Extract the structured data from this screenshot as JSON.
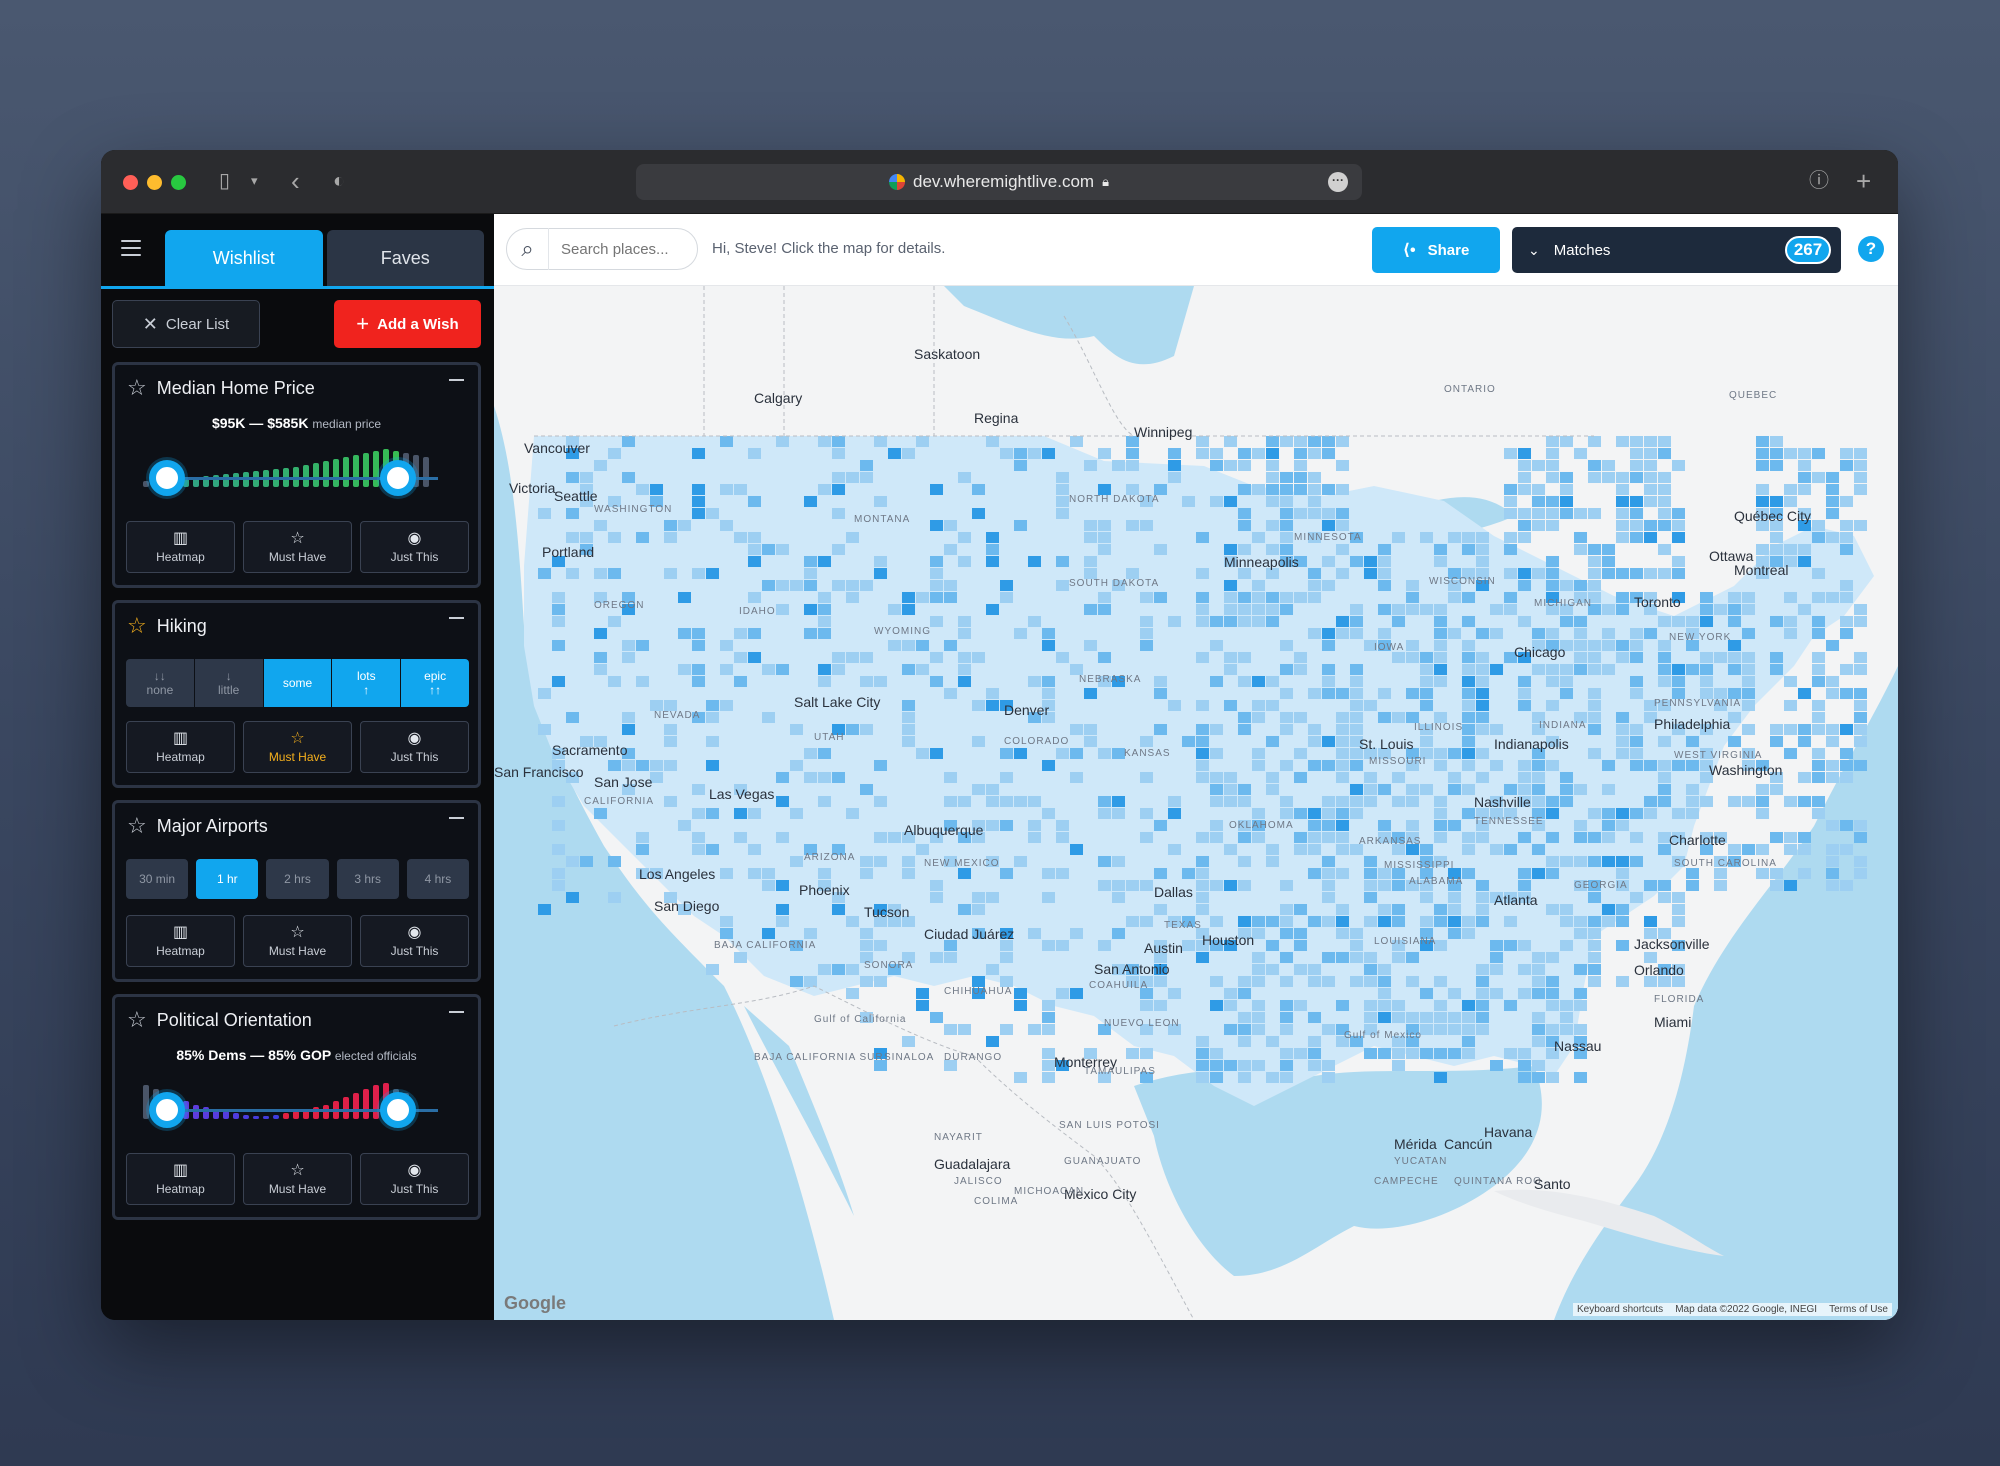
{
  "browser": {
    "url": "dev.wheremightlive.com"
  },
  "sidebar": {
    "tabs": [
      {
        "label": "Wishlist"
      },
      {
        "label": "Faves"
      }
    ],
    "clear_label": "Clear List",
    "add_label": "Add a Wish",
    "cards": {
      "home_price": {
        "title": "Median Home Price",
        "range_low": "$95K",
        "range_high": "$585K",
        "range_sep": "—",
        "range_unit": "median price"
      },
      "hiking": {
        "title": "Hiking",
        "options": [
          {
            "arrow": "↓↓",
            "label": "none"
          },
          {
            "arrow": "↓",
            "label": "little"
          },
          {
            "arrow": "",
            "label": "some"
          },
          {
            "arrow": "↑",
            "label": "lots"
          },
          {
            "arrow": "↑↑",
            "label": "epic"
          }
        ],
        "selected": [
          "some",
          "lots",
          "epic"
        ]
      },
      "airports": {
        "title": "Major Airports",
        "options": [
          "30 min",
          "1 hr",
          "2 hrs",
          "3 hrs",
          "4 hrs"
        ],
        "selected": "1 hr"
      },
      "political": {
        "title": "Political Orientation",
        "range_low": "85% Dems",
        "range_high": "85% GOP",
        "range_sep": "—",
        "range_unit": "elected officials"
      }
    },
    "actions": {
      "heatmap": "Heatmap",
      "must_have": "Must Have",
      "just_this": "Just This"
    }
  },
  "toolbar": {
    "search_placeholder": "Search places...",
    "greeting": "Hi, Steve! Click the map for details.",
    "share_label": "Share",
    "matches_label": "Matches",
    "matches_count": "267",
    "help_label": "?"
  },
  "map": {
    "places": [
      {
        "name": "Saskatoon",
        "type": "city"
      },
      {
        "name": "Calgary",
        "type": "city"
      },
      {
        "name": "Regina",
        "type": "city"
      },
      {
        "name": "Winnipeg",
        "type": "city"
      },
      {
        "name": "ONTARIO",
        "type": "state"
      },
      {
        "name": "QUEBEC",
        "type": "state"
      },
      {
        "name": "Vancouver",
        "type": "city"
      },
      {
        "name": "Victoria",
        "type": "city"
      },
      {
        "name": "Seattle",
        "type": "city"
      },
      {
        "name": "WASHINGTON",
        "type": "state"
      },
      {
        "name": "MONTANA",
        "type": "state"
      },
      {
        "name": "NORTH DAKOTA",
        "type": "state"
      },
      {
        "name": "MINNESOTA",
        "type": "state"
      },
      {
        "name": "Québec City",
        "type": "city"
      },
      {
        "name": "Portland",
        "type": "city"
      },
      {
        "name": "Ottawa",
        "type": "city"
      },
      {
        "name": "Montreal",
        "type": "city"
      },
      {
        "name": "OREGON",
        "type": "state"
      },
      {
        "name": "IDAHO",
        "type": "state"
      },
      {
        "name": "SOUTH DAKOTA",
        "type": "state"
      },
      {
        "name": "Minneapolis",
        "type": "city"
      },
      {
        "name": "WISCONSIN",
        "type": "state"
      },
      {
        "name": "MICHIGAN",
        "type": "state"
      },
      {
        "name": "Toronto",
        "type": "city"
      },
      {
        "name": "WYOMING",
        "type": "state"
      },
      {
        "name": "Chicago",
        "type": "city"
      },
      {
        "name": "IOWA",
        "type": "state"
      },
      {
        "name": "NEW YORK",
        "type": "state"
      },
      {
        "name": "NEBRASKA",
        "type": "state"
      },
      {
        "name": "NEVADA",
        "type": "state"
      },
      {
        "name": "Salt Lake City",
        "type": "city"
      },
      {
        "name": "UTAH",
        "type": "state"
      },
      {
        "name": "Denver",
        "type": "city"
      },
      {
        "name": "COLORADO",
        "type": "state"
      },
      {
        "name": "ILLINOIS",
        "type": "state"
      },
      {
        "name": "INDIANA",
        "type": "state"
      },
      {
        "name": "PENNSYLVANIA",
        "type": "state"
      },
      {
        "name": "Philadelphia",
        "type": "city"
      },
      {
        "name": "Sacramento",
        "type": "city"
      },
      {
        "name": "San Francisco",
        "type": "city"
      },
      {
        "name": "San Jose",
        "type": "city"
      },
      {
        "name": "KANSAS",
        "type": "state"
      },
      {
        "name": "St. Louis",
        "type": "city"
      },
      {
        "name": "Indianapolis",
        "type": "city"
      },
      {
        "name": "MISSOURI",
        "type": "state"
      },
      {
        "name": "WEST VIRGINIA",
        "type": "state"
      },
      {
        "name": "Washington",
        "type": "city"
      },
      {
        "name": "CALIFORNIA",
        "type": "state"
      },
      {
        "name": "Las Vegas",
        "type": "city"
      },
      {
        "name": "Nashville",
        "type": "city"
      },
      {
        "name": "TENNESSEE",
        "type": "state"
      },
      {
        "name": "Albuquerque",
        "type": "city"
      },
      {
        "name": "OKLAHOMA",
        "type": "state"
      },
      {
        "name": "Charlotte",
        "type": "city"
      },
      {
        "name": "Los Angeles",
        "type": "city"
      },
      {
        "name": "ARIZONA",
        "type": "state"
      },
      {
        "name": "NEW MEXICO",
        "type": "state"
      },
      {
        "name": "ARKANSAS",
        "type": "state"
      },
      {
        "name": "SOUTH CAROLINA",
        "type": "state"
      },
      {
        "name": "San Diego",
        "type": "city"
      },
      {
        "name": "Phoenix",
        "type": "city"
      },
      {
        "name": "Dallas",
        "type": "city"
      },
      {
        "name": "MISSISSIPPI",
        "type": "state"
      },
      {
        "name": "ALABAMA",
        "type": "state"
      },
      {
        "name": "Atlanta",
        "type": "city"
      },
      {
        "name": "GEORGIA",
        "type": "state"
      },
      {
        "name": "Tucson",
        "type": "city"
      },
      {
        "name": "Ciudad Juárez",
        "type": "city"
      },
      {
        "name": "TEXAS",
        "type": "state"
      },
      {
        "name": "BAJA CALIFORNIA",
        "type": "state"
      },
      {
        "name": "SONORA",
        "type": "state"
      },
      {
        "name": "Austin",
        "type": "city"
      },
      {
        "name": "Houston",
        "type": "city"
      },
      {
        "name": "LOUISIANA",
        "type": "state"
      },
      {
        "name": "Jacksonville",
        "type": "city"
      },
      {
        "name": "CHIHUAHUA",
        "type": "state"
      },
      {
        "name": "San Antonio",
        "type": "city"
      },
      {
        "name": "Orlando",
        "type": "city"
      },
      {
        "name": "COAHUILA",
        "type": "state"
      },
      {
        "name": "FLORIDA",
        "type": "state"
      },
      {
        "name": "Miami",
        "type": "city"
      },
      {
        "name": "NUEVO LEON",
        "type": "state"
      },
      {
        "name": "Gulf of California",
        "type": "state"
      },
      {
        "name": "Gulf of Mexico",
        "type": "state"
      },
      {
        "name": "Nassau",
        "type": "city"
      },
      {
        "name": "BAJA CALIFORNIA SUR",
        "type": "state"
      },
      {
        "name": "SINALOA",
        "type": "state"
      },
      {
        "name": "DURANGO",
        "type": "state"
      },
      {
        "name": "Monterrey",
        "type": "city"
      },
      {
        "name": "TAMAULIPAS",
        "type": "state"
      },
      {
        "name": "Havana",
        "type": "city"
      },
      {
        "name": "NAYARIT",
        "type": "state"
      },
      {
        "name": "SAN LUIS POTOSI",
        "type": "state"
      },
      {
        "name": "Mérida",
        "type": "city"
      },
      {
        "name": "Cancún",
        "type": "city"
      },
      {
        "name": "Guadalajara",
        "type": "city"
      },
      {
        "name": "GUANAJUATO",
        "type": "state"
      },
      {
        "name": "YUCATAN",
        "type": "state"
      },
      {
        "name": "JALISCO",
        "type": "state"
      },
      {
        "name": "Mexico City",
        "type": "city"
      },
      {
        "name": "CAMPECHE",
        "type": "state"
      },
      {
        "name": "QUINTANA ROO",
        "type": "state"
      },
      {
        "name": "COLIMA",
        "type": "state"
      },
      {
        "name": "MICHOACAN",
        "type": "state"
      },
      {
        "name": "Santo",
        "type": "city"
      }
    ],
    "google_label": "Google",
    "attribution": [
      "Keyboard shortcuts",
      "Map data ©2022 Google, INEGI",
      "Terms of Use"
    ],
    "zoom_in": "+",
    "zoom_out": "−"
  },
  "colors": {
    "accent": "#11a6ee",
    "add_red": "#f0231e",
    "match_dark": "#1d2a3c",
    "gold": "#f5b01d"
  }
}
